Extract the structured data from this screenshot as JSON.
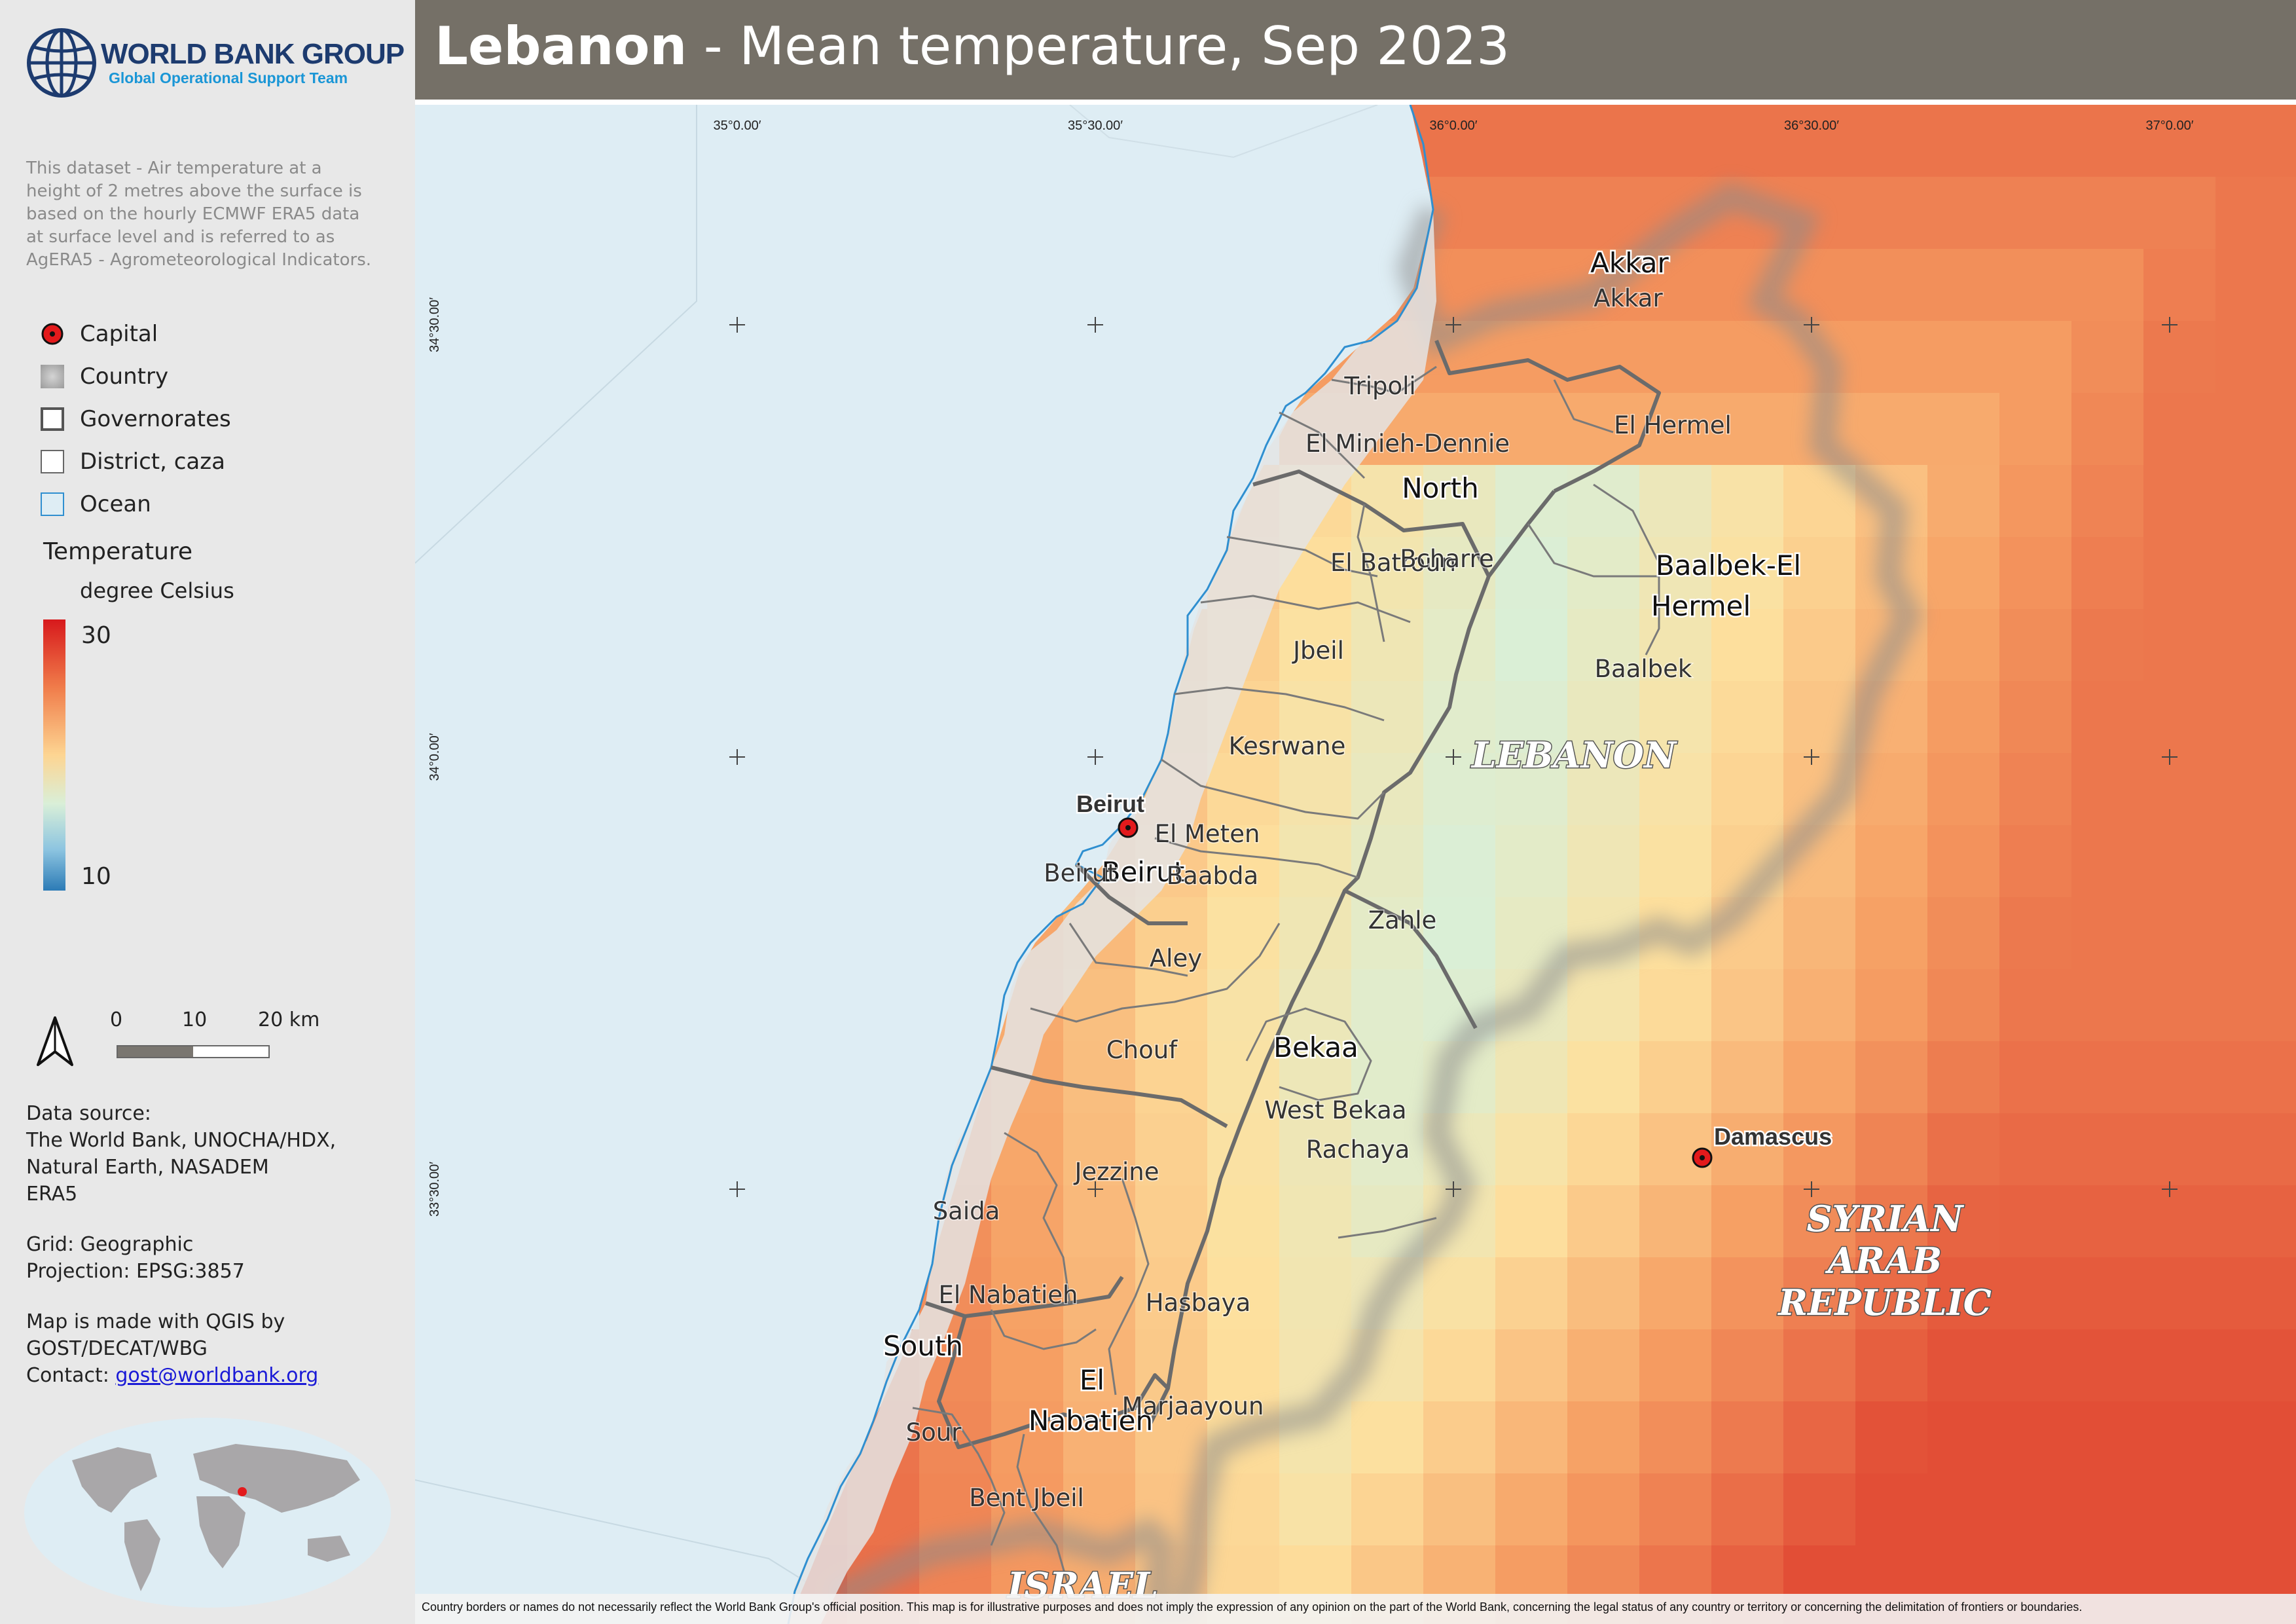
{
  "header": {
    "title_bold": "Lebanon",
    "title_rest": " - Mean temperature, Sep 2023"
  },
  "logo": {
    "name": "WORLD BANK GROUP",
    "subtitle": "Global Operational Support Team"
  },
  "description": "This dataset - Air temperature at a height of 2 metres above the surface is based on the hourly ECMWF ERA5 data at surface level and is referred to as AgERA5 - Agrometeorological Indicators.",
  "legend": {
    "items": [
      {
        "label": "Capital",
        "symbol": "capital-icon"
      },
      {
        "label": "Country",
        "symbol": "country-swatch"
      },
      {
        "label": "Governorates",
        "symbol": "governorate-swatch"
      },
      {
        "label": "District, caza",
        "symbol": "district-swatch"
      },
      {
        "label": "Ocean",
        "symbol": "ocean-swatch"
      }
    ],
    "temperature_title": "Temperature",
    "temperature_unit": "degree Celsius",
    "max": "30",
    "min": "10",
    "colors": [
      "#d7191c",
      "#f07c4a",
      "#fdd592",
      "#d9efd8",
      "#2c7bb6"
    ]
  },
  "scale_bar": {
    "labels": [
      "0",
      "10",
      "20 km"
    ]
  },
  "info": {
    "data_source_label": "Data source:",
    "data_source_lines": [
      "The World Bank, UNOCHA/HDX,",
      "Natural Earth, NASADEM",
      "ERA5"
    ],
    "grid": "Grid: Geographic",
    "projection": "Projection: EPSG:3857",
    "made_with_1": "Map is made with QGIS by",
    "made_with_2": "GOST/DECAT/WBG",
    "contact_label": "Contact: ",
    "contact_email": "gost@worldbank.org"
  },
  "map": {
    "lon_ticks": [
      "35°0.00′",
      "35°30.00′",
      "36°0.00′",
      "36°30.00′",
      "37°0.00′"
    ],
    "lat_ticks": [
      "34°30.00′",
      "34°0.00′",
      "33°30.00′"
    ],
    "capitals": [
      "Beirut",
      "Damascus"
    ],
    "countries": [
      "LEBANON",
      "SYRIAN",
      "ARAB",
      "REPUBLIC",
      "ISRAEL"
    ],
    "governorates": [
      "Akkar",
      "North",
      "Baalbek-El",
      "Hermel",
      "Beirut",
      "Bekaa",
      "South",
      "El",
      "Nabatieh"
    ],
    "districts": [
      "Akkar",
      "Tripoli",
      "El Minieh-Dennie",
      "El Hermel",
      "El Batroun",
      "Bcharre",
      "Jbeil",
      "Baalbek",
      "Kesrwane",
      "El Meten",
      "Beirut",
      "Baabda",
      "Zahle",
      "Aley",
      "Chouf",
      "West Bekaa",
      "Rachaya",
      "Jezzine",
      "Saida",
      "El Nabatieh",
      "Hasbaya",
      "Marjaayoun",
      "Sour",
      "Bent Jbeil"
    ]
  },
  "disclaimer": "Country borders or names do not necessarily reflect the World Bank Group's official position. This map is for illustrative purposes and does not imply the expression of any opinion on the part of the World Bank, concerning the legal status of any country or territory or concerning the delimitation of frontiers or boundaries."
}
